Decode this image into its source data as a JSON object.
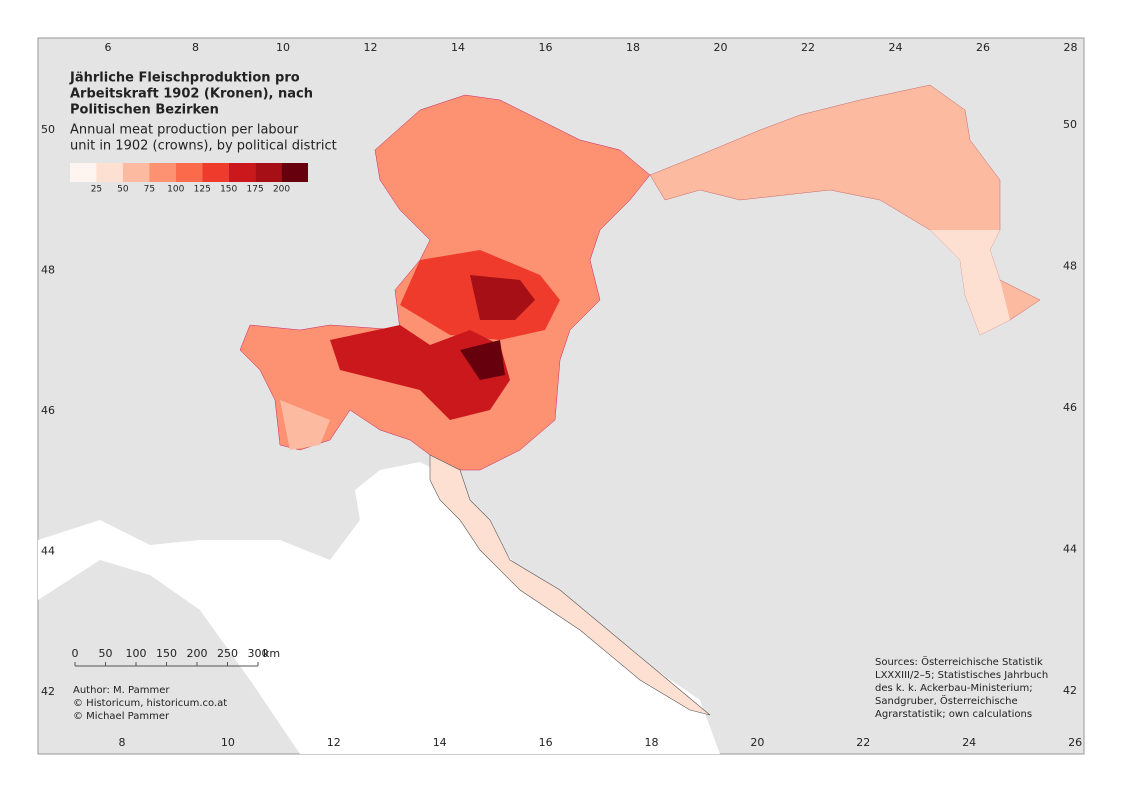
{
  "map": {
    "title_de": [
      "Jährliche Fleischproduktion pro",
      "Arbeitskraft 1902 (Kronen), nach",
      "Politischen Bezirken"
    ],
    "title_en": [
      "Annual meat production per labour",
      "unit in 1902 (crowns), by political district"
    ],
    "legend": {
      "labels": [
        25,
        50,
        75,
        100,
        125,
        150,
        175,
        200
      ],
      "colors": [
        "#fff5f0",
        "#fee0d2",
        "#fcbba1",
        "#fc9272",
        "#fb6a4a",
        "#ef3b2c",
        "#cb181d",
        "#a50f15",
        "#67000d"
      ]
    },
    "scale_bar": {
      "labels": [
        0,
        50,
        100,
        150,
        200,
        250,
        300
      ],
      "unit": "km"
    },
    "top_labels": [
      6,
      8,
      10,
      12,
      14,
      16,
      18,
      20,
      22,
      24,
      26,
      28
    ],
    "bottom_labels": [
      8,
      10,
      12,
      14,
      16,
      18,
      20,
      22,
      24,
      26
    ],
    "left_labels": [
      50,
      48,
      46,
      44,
      42
    ],
    "right_labels": [
      50,
      48,
      46,
      44,
      42
    ],
    "author": [
      "Author: M. Pammer",
      "© Historicum, historicum.co.at",
      "© Michael Pammer"
    ],
    "sources": [
      "Sources: Österreichische Statistik",
      "LXXXIII/2–5; Statistisches Jahrbuch",
      "des k. k. Ackerbau-Ministerium;",
      "Sandgruber, Österreichische",
      "Agrarstatistik; own calculations"
    ]
  }
}
